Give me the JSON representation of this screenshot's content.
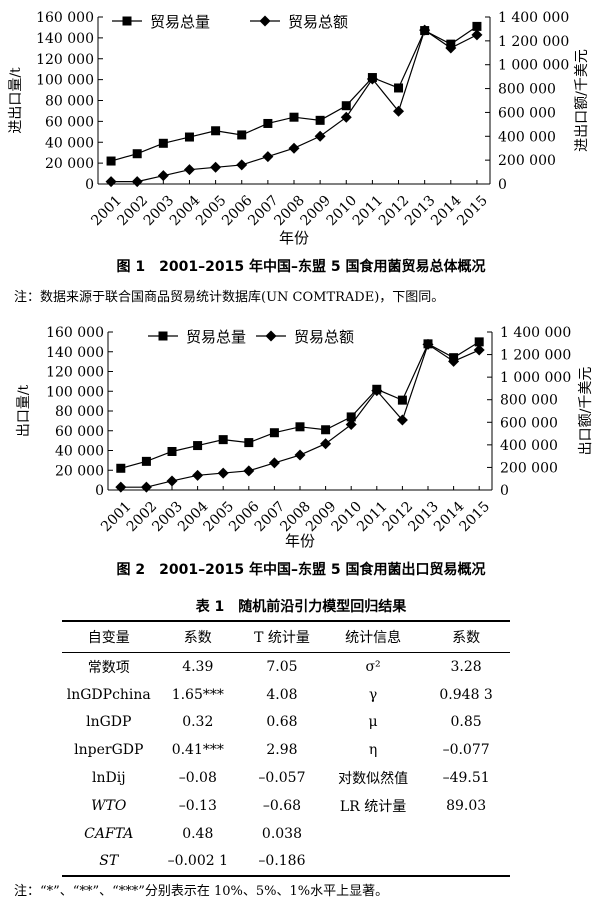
{
  "chart_data": [
    {
      "type": "line",
      "x": [
        "2001",
        "2002",
        "2003",
        "2004",
        "2005",
        "2006",
        "2007",
        "2008",
        "2009",
        "2010",
        "2011",
        "2012",
        "2013",
        "2014",
        "2015"
      ],
      "series": [
        {
          "name": "贸易总量",
          "axis": "left",
          "marker": "square",
          "values": [
            22000,
            29000,
            39000,
            45000,
            51000,
            47000,
            58000,
            64000,
            61000,
            75000,
            102000,
            92000,
            147000,
            134000,
            151000
          ]
        },
        {
          "name": "贸易总额",
          "axis": "right",
          "marker": "diamond",
          "values": [
            20000,
            20000,
            70000,
            120000,
            140000,
            160000,
            230000,
            300000,
            400000,
            560000,
            880000,
            610000,
            1290000,
            1140000,
            1250000
          ]
        }
      ],
      "ylabel_left": "进出口量/t",
      "ylabel_right": "进出口额/千美元",
      "xlabel": "年份",
      "ylim_left": [
        0,
        160000
      ],
      "ylim_right": [
        0,
        1400000
      ],
      "yticks_left": [
        "0",
        "20 000",
        "40 000",
        "60 000",
        "80 000",
        "100 000",
        "120 000",
        "140 000",
        "160 000"
      ],
      "yticks_right": [
        "0",
        "200 000",
        "400 000",
        "600 000",
        "800 000",
        "1 000 000",
        "1 200 000",
        "1 400 000"
      ],
      "legend_position": "top",
      "grid": false
    },
    {
      "type": "line",
      "x": [
        "2001",
        "2002",
        "2003",
        "2004",
        "2005",
        "2006",
        "2007",
        "2008",
        "2009",
        "2010",
        "2011",
        "2012",
        "2013",
        "2014",
        "2015"
      ],
      "series": [
        {
          "name": "贸易总量",
          "axis": "left",
          "marker": "square",
          "values": [
            22000,
            29000,
            39000,
            45000,
            51000,
            48000,
            58000,
            64000,
            61000,
            74000,
            102000,
            91000,
            148000,
            134000,
            150000
          ]
        },
        {
          "name": "贸易总额",
          "axis": "right",
          "marker": "diamond",
          "values": [
            25000,
            25000,
            80000,
            130000,
            150000,
            170000,
            240000,
            310000,
            410000,
            580000,
            880000,
            620000,
            1290000,
            1140000,
            1240000
          ]
        }
      ],
      "ylabel_left": "出口量/t",
      "ylabel_right": "出口额/千美元",
      "xlabel": "年份",
      "ylim_left": [
        0,
        160000
      ],
      "ylim_right": [
        0,
        1400000
      ],
      "yticks_left": [
        "0",
        "20 000",
        "40 000",
        "60 000",
        "80 000",
        "100 000",
        "120 000",
        "140 000",
        "160 000"
      ],
      "yticks_right": [
        "0",
        "200 000",
        "400 000",
        "600 000",
        "800 000",
        "1 000 000",
        "1 200 000",
        "1 400 000"
      ],
      "legend_position": "top",
      "grid": false
    }
  ],
  "captions": {
    "fig1": "图 1　2001–2015 年中国–东盟 5 国食用菌贸易总体概况",
    "note1": "注：数据来源于联合国商品贸易统计数据库(UN COMTRADE)，下图同。",
    "fig2": "图 2　2001–2015 年中国–东盟 5 国食用菌出口贸易概况",
    "table_title": "表 1　随机前沿引力模型回归结果",
    "table_note": "注：“*”、“**”、“***”分别表示在 10%、5%、1%水平上显著。"
  },
  "table": {
    "headers": [
      "自变量",
      "系数",
      "T 统计量",
      "统计信息",
      "系数"
    ],
    "rows": [
      {
        "var": "常数项",
        "coef": "4.39",
        "t": "7.05",
        "stat": "σ²",
        "stat_coef": "3.28"
      },
      {
        "var": "lnGDPchina",
        "coef": "1.65***",
        "t": "4.08",
        "stat": "γ",
        "stat_coef": "0.948 3"
      },
      {
        "var": "lnGDP",
        "coef": "0.32",
        "t": "0.68",
        "stat": "μ",
        "stat_coef": "0.85"
      },
      {
        "var": "lnperGDP",
        "coef": "0.41***",
        "t": "2.98",
        "stat": "η",
        "stat_coef": "–0.077"
      },
      {
        "var": "lnDij",
        "coef": "–0.08",
        "t": "–0.057",
        "stat": "对数似然值",
        "stat_coef": "–49.51"
      },
      {
        "var": "WTO",
        "coef": "–0.13",
        "t": "–0.68",
        "stat": "LR 统计量",
        "stat_coef": "89.03"
      },
      {
        "var": "CAFTA",
        "coef": "0.48",
        "t": "0.038",
        "stat": "",
        "stat_coef": ""
      },
      {
        "var": "ST",
        "coef": "–0.002 1",
        "t": "–0.186",
        "stat": "",
        "stat_coef": ""
      }
    ]
  }
}
